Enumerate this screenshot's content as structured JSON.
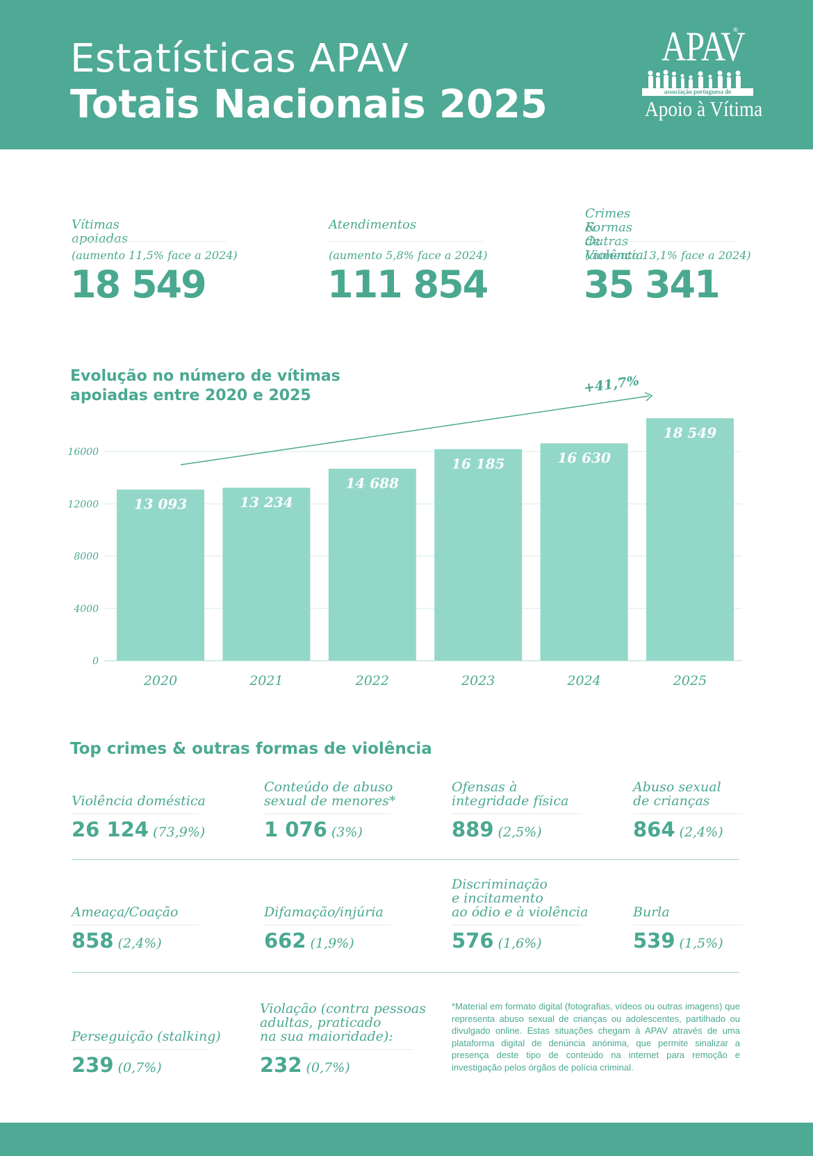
{
  "header": {
    "title_line1": "Estatísticas APAV",
    "title_line2": "Totais Nacionais 2025",
    "logo_name": "APAV",
    "logo_reg": "®",
    "logo_band": "associação portuguesa de",
    "logo_sub": "Apoio à Vítima"
  },
  "stats": [
    {
      "label": "Vítimas apoiadas",
      "change": "(aumento 11,5% face a 2024)",
      "value": "18 549"
    },
    {
      "label": "Atendimentos",
      "change": "(aumento 5,8% face a 2024)",
      "value": "111 854"
    },
    {
      "label_line1": "Crimes & Outras",
      "label_line2": "Formas de Violência",
      "change": "(aumento 13,1% face a 2024)",
      "value": "35 341"
    }
  ],
  "chart_data": {
    "type": "bar",
    "title_line1": "Evolução no número de vítimas",
    "title_line2": "apoiadas entre 2020 e 2025",
    "categories": [
      "2020",
      "2021",
      "2022",
      "2023",
      "2024",
      "2025"
    ],
    "values": [
      13093,
      13234,
      14688,
      16185,
      16630,
      18549
    ],
    "value_labels": [
      "13 093",
      "13 234",
      "14 688",
      "16 185",
      "16 630",
      "18 549"
    ],
    "yticks": [
      0,
      4000,
      8000,
      12000,
      16000
    ],
    "ylim": [
      0,
      16000
    ],
    "trend_label": "+41,7%",
    "bar_color": "#93d7c9",
    "grid": true
  },
  "crimes": {
    "title": "Top crimes & outras formas de violência",
    "items": [
      {
        "label": [
          "Violência doméstica"
        ],
        "value": "26 124",
        "pct": "(73,9%)"
      },
      {
        "label": [
          "Conteúdo de abuso",
          "sexual de menores*"
        ],
        "value": "1 076",
        "pct": "(3%)"
      },
      {
        "label": [
          "Ofensas à",
          "integridade física"
        ],
        "value": "889",
        "pct": "(2,5%)"
      },
      {
        "label": [
          "Abuso sexual",
          "de crianças"
        ],
        "value": "864",
        "pct": "(2,4%)"
      },
      {
        "label": [
          "Ameaça/Coação"
        ],
        "value": "858",
        "pct": "(2,4%)"
      },
      {
        "label": [
          "Difamação/injúria"
        ],
        "value": "662",
        "pct": "(1,9%)"
      },
      {
        "label": [
          "Discriminação",
          "e incitamento",
          "ao ódio e à violência"
        ],
        "value": "576",
        "pct": "(1,6%)"
      },
      {
        "label": [
          "Burla"
        ],
        "value": "539",
        "pct": "(1,5%)"
      },
      {
        "label": [
          "Perseguição (stalking)"
        ],
        "value": "239",
        "pct": "(0,7%)"
      },
      {
        "label": [
          "Violação (contra pessoas",
          "adultas, praticado",
          "na sua maioridade):"
        ],
        "value": "232",
        "pct": "(0,7%)"
      }
    ]
  },
  "footnote": "*Material em formato digital (fotografias, vídeos ou outras imagens) que representa abuso sexual de crianças ou adolescentes, partilhado ou divulgado online. Estas situações chegam à APAV através de uma plataforma digital de denúncia anónima, que permite sinalizar a presença deste tipo de conteúdo na internet para remoção e investigação pelos órgãos de polícia criminal.",
  "colors": {
    "brand": "#4ea995",
    "text": "#4aa891",
    "bar": "#93d7c9"
  }
}
